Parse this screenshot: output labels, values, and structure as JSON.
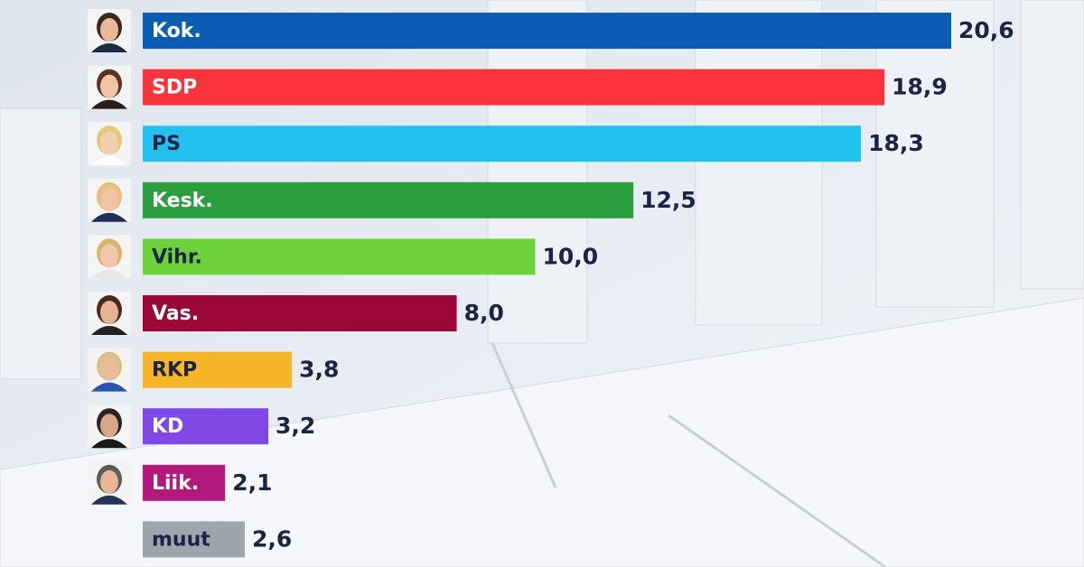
{
  "chart_data": {
    "type": "bar",
    "orientation": "horizontal",
    "categories": [
      "Kok.",
      "SDP",
      "PS",
      "Kesk.",
      "Vihr.",
      "Vas.",
      "RKP",
      "KD",
      "Liik.",
      "muut"
    ],
    "values": [
      20.6,
      18.9,
      18.3,
      12.5,
      10.0,
      8.0,
      3.8,
      3.2,
      2.1,
      2.6
    ],
    "value_labels": [
      "20,6",
      "18,9",
      "18,3",
      "12,5",
      "10,0",
      "8,0",
      "3,8",
      "3,2",
      "2,1",
      "2,6"
    ],
    "colors": [
      "#0b5db4",
      "#fb343c",
      "#22c1ee",
      "#2b9e3f",
      "#6ed23c",
      "#9b0837",
      "#f6b428",
      "#7f47e4",
      "#b3197a",
      "#9fa5ad"
    ]
  }
}
